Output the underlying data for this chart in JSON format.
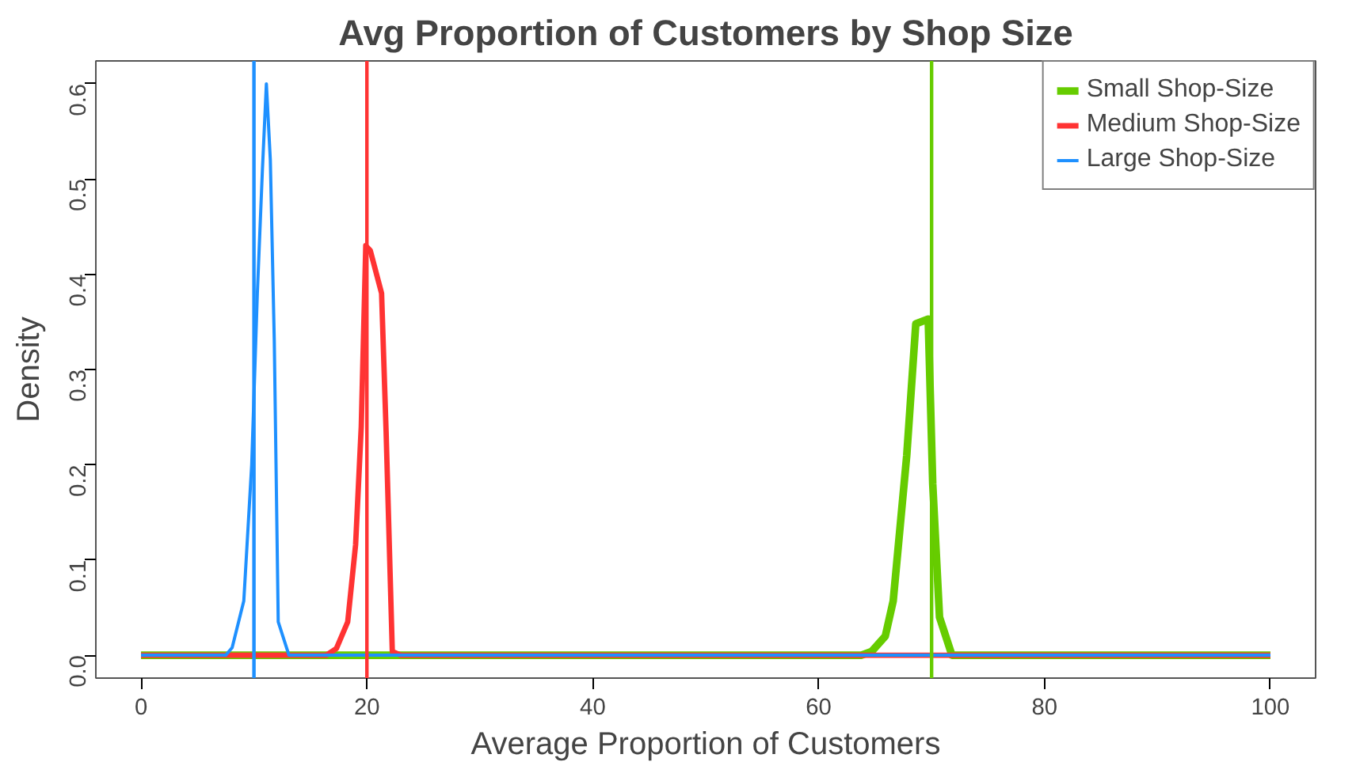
{
  "chart_data": {
    "type": "line",
    "title": "Avg Proportion of Customers by Shop Size",
    "xlabel": "Average Proportion of Customers",
    "ylabel": "Density",
    "series": [
      {
        "name": "Small Shop-Size",
        "color": "#66cc00",
        "x": [
          0,
          63.8,
          64.7,
          65.9,
          66.6,
          67.8,
          68.6,
          69.7,
          70.1,
          70.7,
          71.8,
          100
        ],
        "values": [
          0,
          0,
          0.004,
          0.02,
          0.057,
          0.21,
          0.348,
          0.353,
          0.18,
          0.04,
          0,
          0
        ]
      },
      {
        "name": "Medium Shop-Size",
        "color": "#ff3333",
        "x": [
          0,
          16.4,
          17.3,
          18.3,
          19.0,
          19.5,
          19.9,
          20.3,
          21.3,
          21.7,
          22.25,
          23,
          100
        ],
        "values": [
          0,
          0,
          0.007,
          0.035,
          0.116,
          0.24,
          0.43,
          0.425,
          0.38,
          0.235,
          0.004,
          0,
          0
        ]
      },
      {
        "name": "Large Shop-Size",
        "color": "#1e90ff",
        "x": [
          0,
          7.5,
          8.07,
          9.1,
          9.8,
          10.3,
          10.75,
          11.1,
          11.45,
          11.8,
          12.15,
          13.1,
          100
        ],
        "values": [
          0,
          0,
          0.008,
          0.057,
          0.2,
          0.38,
          0.51,
          0.6,
          0.52,
          0.33,
          0.035,
          0,
          0
        ]
      }
    ],
    "ref_lines": [
      {
        "axis": "x",
        "value": 70,
        "color": "#66cc00"
      },
      {
        "axis": "x",
        "value": 20,
        "color": "#ff3333"
      },
      {
        "axis": "x",
        "value": 10,
        "color": "#1e90ff"
      }
    ],
    "xlim": [
      -4,
      104
    ],
    "ylim": [
      -0.024,
      0.624
    ],
    "xticks": [
      0,
      20,
      40,
      60,
      80,
      100
    ],
    "yticks": [
      {
        "value": 0,
        "label": "0.0"
      },
      0.1,
      0.2,
      0.3,
      0.4,
      0.5,
      0.6
    ],
    "grid": false,
    "legend": "top right"
  }
}
